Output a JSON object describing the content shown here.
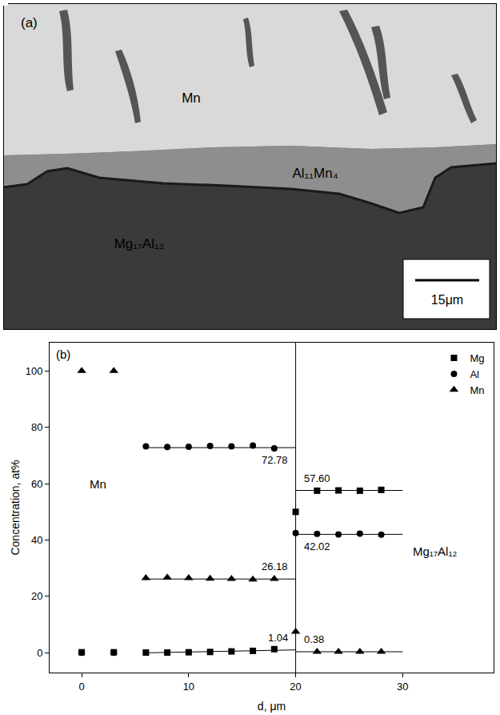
{
  "panel_a": {
    "label": "(a)",
    "regions": [
      {
        "label": "Mn"
      },
      {
        "label": "Al₁₁Mn₄"
      },
      {
        "label": "Mg₁₇Al₁₂"
      }
    ],
    "scale_bar": "15μm"
  },
  "chart_data": {
    "type": "scatter",
    "panel_label": "(b)",
    "x_label": "d, μm",
    "y_label": "Concentration, at%",
    "xlim": [
      -3,
      38.5
    ],
    "xticks": [
      0,
      10,
      20,
      30
    ],
    "ylim": [
      -7,
      110
    ],
    "yticks": [
      0,
      20,
      40,
      60,
      80,
      100
    ],
    "grid": false,
    "legend": "top right",
    "series": [
      {
        "name": "Mg",
        "marker": "square",
        "color": "#000000",
        "x": [
          0,
          3,
          6,
          8,
          10,
          12,
          14,
          16,
          18,
          20,
          22,
          24,
          26,
          28
        ],
        "values": [
          0.2,
          0.2,
          0.1,
          0.1,
          0.2,
          0.3,
          0.5,
          0.7,
          1.3,
          50,
          57.5,
          57.6,
          57.5,
          57.8
        ]
      },
      {
        "name": "Al",
        "marker": "circle",
        "color": "#000000",
        "x": [
          0,
          3,
          6,
          8,
          10,
          12,
          14,
          16,
          18,
          20,
          22,
          24,
          26,
          28
        ],
        "values": [
          0,
          0,
          73.2,
          73.0,
          73.1,
          73.4,
          73.2,
          73.5,
          72.5,
          42.5,
          42.2,
          42.0,
          42.3,
          41.9
        ]
      },
      {
        "name": "Mn",
        "marker": "triangle-up",
        "color": "#000000",
        "x": [
          0,
          3,
          6,
          8,
          10,
          12,
          14,
          16,
          18,
          20,
          22,
          24,
          26,
          28
        ],
        "values": [
          100,
          100,
          26.5,
          26.7,
          26.5,
          26.3,
          26.2,
          26.0,
          26.2,
          7.5,
          0.4,
          0.4,
          0.4,
          0.4
        ]
      }
    ],
    "fit_lines": [
      {
        "x": [
          6,
          20
        ],
        "y": [
          72.78,
          72.78
        ],
        "label": "72.78",
        "label_side": "below"
      },
      {
        "x": [
          6,
          20
        ],
        "y": [
          26.18,
          26.18
        ],
        "label": "26.18",
        "label_side": "above"
      },
      {
        "x": [
          6,
          20
        ],
        "y": [
          0,
          1.04
        ],
        "label": "1.04",
        "label_side": "above"
      },
      {
        "x": [
          20,
          30
        ],
        "y": [
          57.6,
          57.6
        ],
        "label": "57.60",
        "label_side": "above"
      },
      {
        "x": [
          20,
          30
        ],
        "y": [
          42.02,
          42.02
        ],
        "label": "42.02",
        "label_side": "below"
      },
      {
        "x": [
          20,
          30
        ],
        "y": [
          0.38,
          0.38
        ],
        "label": "0.38",
        "label_side": "above"
      }
    ],
    "divider_x": 20,
    "plot_labels": [
      {
        "text": "Mn",
        "x": 1.5,
        "y": 60
      },
      {
        "text": "Mg₁₇Al₁₂",
        "x": 33,
        "y": 36
      }
    ]
  }
}
